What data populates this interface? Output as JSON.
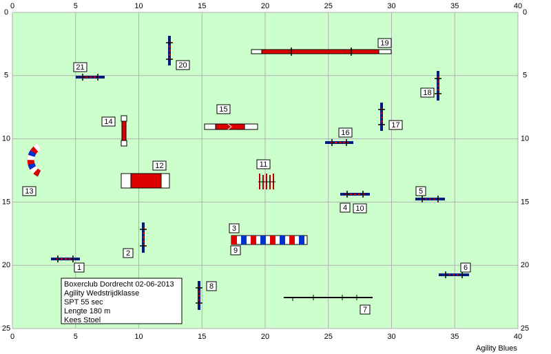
{
  "axes": {
    "x_ticks": [
      0,
      5,
      10,
      15,
      20,
      25,
      30,
      35,
      40
    ],
    "y_ticks": [
      0,
      5,
      10,
      15,
      20,
      25
    ]
  },
  "obstacles": [
    "1",
    "2",
    "3",
    "4",
    "5",
    "6",
    "7",
    "8",
    "9",
    "10",
    "11",
    "12",
    "13",
    "14",
    "15",
    "16",
    "17",
    "18",
    "19",
    "20",
    "21"
  ],
  "info": [
    "Boxerclub Dordrecht 02-06-2013",
    "Agility Wedstrijdklasse",
    "SPT 55 sec",
    "Lengte 180 m",
    "Kees Stoel"
  ],
  "footer": "Agility Blues"
}
